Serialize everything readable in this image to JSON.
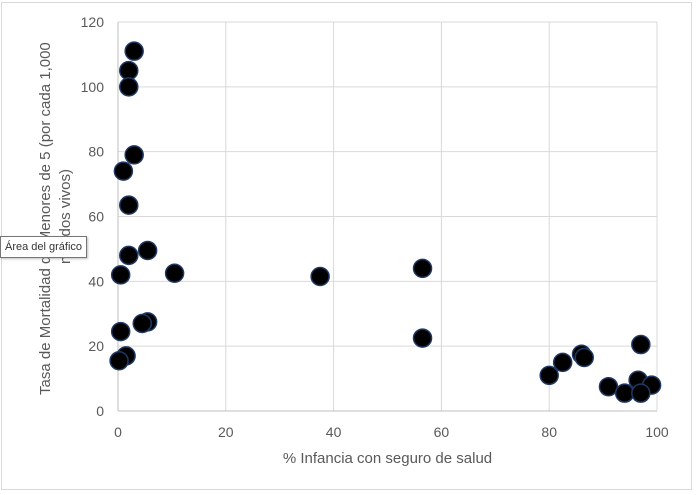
{
  "chart_data": {
    "type": "scatter",
    "title": "",
    "xlabel": "% Infancia con seguro de salud",
    "ylabel_lines": [
      "Tasa de Mortalidad de Menores de 5 (por cada 1,000",
      "nacidos vivos)"
    ],
    "xlim": [
      0,
      100
    ],
    "ylim": [
      0,
      120
    ],
    "x_ticks": [
      0,
      20,
      40,
      60,
      80,
      100
    ],
    "y_ticks": [
      0,
      20,
      40,
      60,
      80,
      100,
      120
    ],
    "grid": true,
    "marker_color": "#000000",
    "marker_edge_color": "#1f3864",
    "points": [
      {
        "x": 3,
        "y": 111
      },
      {
        "x": 2,
        "y": 105
      },
      {
        "x": 2,
        "y": 100
      },
      {
        "x": 3,
        "y": 79
      },
      {
        "x": 1,
        "y": 74
      },
      {
        "x": 2,
        "y": 63.5
      },
      {
        "x": 5.5,
        "y": 49.5
      },
      {
        "x": 2,
        "y": 48
      },
      {
        "x": 10.5,
        "y": 42.5
      },
      {
        "x": 0.5,
        "y": 42
      },
      {
        "x": 37.5,
        "y": 41.5
      },
      {
        "x": 56.5,
        "y": 44
      },
      {
        "x": 5.5,
        "y": 27.5
      },
      {
        "x": 4.5,
        "y": 27
      },
      {
        "x": 0.5,
        "y": 24.5
      },
      {
        "x": 56.5,
        "y": 22.5
      },
      {
        "x": 1.5,
        "y": 17
      },
      {
        "x": 0.2,
        "y": 15.5
      },
      {
        "x": 97,
        "y": 20.5
      },
      {
        "x": 86,
        "y": 17.5
      },
      {
        "x": 86.5,
        "y": 16.5
      },
      {
        "x": 82.5,
        "y": 15
      },
      {
        "x": 80,
        "y": 11
      },
      {
        "x": 91,
        "y": 7.5
      },
      {
        "x": 96.5,
        "y": 9.5
      },
      {
        "x": 99,
        "y": 8
      },
      {
        "x": 94,
        "y": 5.5
      },
      {
        "x": 97,
        "y": 5.5
      }
    ]
  },
  "tooltip": {
    "text": "Área del gráfico"
  }
}
